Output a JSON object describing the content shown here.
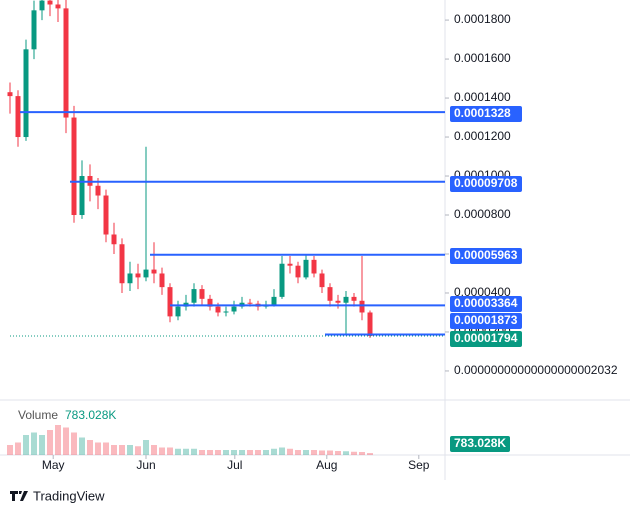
{
  "chart_data": {
    "type": "candlestick",
    "watermark": "TradingView",
    "open": [
      0.000143,
      0.000141,
      0.00012,
      0.000165,
      0.000185,
      0.00019,
      0.000188,
      0.000186,
      0.00013,
      8e-05,
      0.0001,
      9.5e-05,
      9e-05,
      7e-05,
      6.5e-05,
      4.5e-05,
      5e-05,
      4.8e-05,
      5.2e-05,
      5e-05,
      4.3e-05,
      2.8e-05,
      3.3e-05,
      3.5e-05,
      4.2e-05,
      3.7e-05,
      3.3e-05,
      3e-05,
      3.05e-05,
      3.3e-05,
      3.5e-05,
      3.45e-05,
      3.3e-05,
      3.4e-05,
      3.8e-05,
      5.5e-05,
      5.4e-05,
      4.8e-05,
      5.7e-05,
      5e-05,
      4.3e-05,
      3.6e-05,
      3.5e-05,
      3.8e-05,
      3.6e-05,
      3e-05
    ],
    "high": [
      0.000148,
      0.000144,
      0.00017,
      0.00019,
      0.000195,
      0.000194,
      0.000193,
      0.000192,
      0.000136,
      0.000108,
      0.000106,
      9.9e-05,
      9.3e-05,
      7.6e-05,
      6.8e-05,
      5.6e-05,
      5.5e-05,
      0.000115,
      6.6e-05,
      5.3e-05,
      4.5e-05,
      3.6e-05,
      3.9e-05,
      4.5e-05,
      4.4e-05,
      3.9e-05,
      3.5e-05,
      3.3e-05,
      3.6e-05,
      3.8e-05,
      3.7e-05,
      3.6e-05,
      3.6e-05,
      4.2e-05,
      5.9e-05,
      5.9e-05,
      5.6e-05,
      6e-05,
      5.9e-05,
      5.2e-05,
      4.5e-05,
      3.9e-05,
      4.1e-05,
      4e-05,
      5.9e-05,
      3.1e-05
    ],
    "low": [
      0.000132,
      0.000115,
      0.000118,
      0.00016,
      0.00018,
      0.000182,
      0.000179,
      0.000122,
      7.6e-05,
      7.8e-05,
      8.7e-05,
      8.3e-05,
      6.6e-05,
      6e-05,
      4e-05,
      4.1e-05,
      4.2e-05,
      4.6e-05,
      4.5e-05,
      3.9e-05,
      2.5e-05,
      2.6e-05,
      3.1e-05,
      3.3e-05,
      3.4e-05,
      3.1e-05,
      2.8e-05,
      2.8e-05,
      2.9e-05,
      3.2e-05,
      3.3e-05,
      3.1e-05,
      3.2e-05,
      3.3e-05,
      3.7e-05,
      5e-05,
      4.5e-05,
      4.7e-05,
      4.8e-05,
      4e-05,
      3.3e-05,
      3.2e-05,
      1.9e-05,
      3.3e-05,
      2.6e-05,
      1.7e-05
    ],
    "close": [
      0.000141,
      0.00012,
      0.000165,
      0.000185,
      0.00019,
      0.000188,
      0.000186,
      0.00013,
      8e-05,
      0.0001,
      9.5e-05,
      9e-05,
      7e-05,
      6.5e-05,
      4.5e-05,
      5e-05,
      4.8e-05,
      5.2e-05,
      5e-05,
      4.3e-05,
      2.8e-05,
      3.3e-05,
      3.5e-05,
      4.2e-05,
      3.7e-05,
      3.3e-05,
      3e-05,
      3.05e-05,
      3.3e-05,
      3.5e-05,
      3.45e-05,
      3.3e-05,
      3.4e-05,
      3.8e-05,
      5.5e-05,
      5.4e-05,
      4.8e-05,
      5.7e-05,
      5e-05,
      4.3e-05,
      3.6e-05,
      3.5e-05,
      3.8e-05,
      3.6e-05,
      3e-05,
      1.794e-05
    ],
    "up_color": "#089981",
    "down_color": "#f23645",
    "ylim": [
      -1.49e-05,
      0.0001903
    ],
    "yticks": [
      {
        "value": 2.032e-20,
        "label": "0.00000000000000000002032"
      },
      {
        "value": 2e-05,
        "label": "0.0000200"
      },
      {
        "value": 4e-05,
        "label": "0.0000400"
      },
      {
        "value": 6e-05,
        "label": "0.0000600"
      },
      {
        "value": 8e-05,
        "label": "0.0000800"
      },
      {
        "value": 0.0001,
        "label": "0.0001000"
      },
      {
        "value": 0.00012,
        "label": "0.0001200"
      },
      {
        "value": 0.00014,
        "label": "0.0001400"
      },
      {
        "value": 0.00016,
        "label": "0.0001600"
      },
      {
        "value": 0.00018,
        "label": "0.0001800"
      }
    ],
    "xlim": [
      -1.25,
      53.75
    ],
    "xticks": [
      {
        "value": 5.4,
        "label": "May"
      },
      {
        "value": 17,
        "label": "Jun"
      },
      {
        "value": 28.1,
        "label": "Jul"
      },
      {
        "value": 39.6,
        "label": "Aug"
      },
      {
        "value": 51.1,
        "label": "Sep"
      }
    ],
    "levels": {
      "color": "#2962ff",
      "values": [
        0.0001328,
        9.708e-05,
        5.963e-05,
        3.364e-05,
        1.873e-05
      ]
    },
    "last_price_color": "#089981",
    "volume": {
      "name": "Volume",
      "ylim": [
        0,
        16000000
      ],
      "values": [
        4000000,
        5000000,
        8000000,
        9000000,
        8000000,
        10000000,
        12000000,
        11000000,
        9000000,
        7000000,
        6000000,
        5000000,
        5000000,
        4000000,
        4000000,
        4000000,
        3500000,
        6000000,
        4000000,
        3000000,
        3000000,
        2500000,
        2500000,
        2500000,
        2000000,
        2000000,
        2000000,
        2000000,
        2000000,
        2000000,
        2000000,
        2000000,
        2000000,
        2500000,
        3000000,
        2500000,
        2000000,
        2000000,
        2000000,
        1800000,
        1800000,
        1600000,
        1500000,
        1300000,
        1200000,
        783028
      ],
      "value_labels": [
        null,
        null,
        null,
        null,
        null,
        null,
        null,
        null,
        null,
        null,
        null,
        null,
        null,
        null,
        null,
        null,
        null,
        null,
        null,
        null,
        null,
        null,
        null,
        null,
        null,
        null,
        null,
        null,
        null,
        null,
        null,
        null,
        null,
        null,
        null,
        null,
        null,
        null,
        null,
        null,
        null,
        null,
        null,
        null,
        null,
        "783.028K"
      ]
    }
  }
}
